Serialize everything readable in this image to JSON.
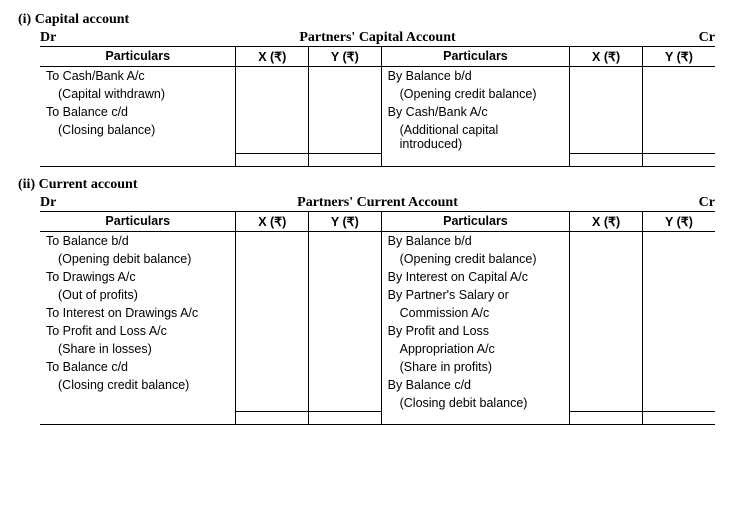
{
  "sections": [
    {
      "num": "(i)",
      "label": "Capital account",
      "dr": "Dr",
      "cr": "Cr",
      "title": "Partners' Capital Account",
      "cols": {
        "part": "Particulars",
        "x": "X (₹)",
        "y": "Y (₹)"
      },
      "left": [
        {
          "t": "To Cash/Bank A/c"
        },
        {
          "t": "(Capital withdrawn)",
          "indent": true
        },
        {
          "t": "To Balance c/d"
        },
        {
          "t": "(Closing balance)",
          "indent": true
        }
      ],
      "right": [
        {
          "t": "By Balance b/d"
        },
        {
          "t": "(Opening credit balance)",
          "indent": true
        },
        {
          "t": "By Cash/Bank A/c"
        },
        {
          "t": "(Additional capital introduced)",
          "indent": true
        }
      ]
    },
    {
      "num": "(ii)",
      "label": "Current account",
      "dr": "Dr",
      "cr": "Cr",
      "title": "Partners' Current Account",
      "cols": {
        "part": "Particulars",
        "x": "X (₹)",
        "y": "Y (₹)"
      },
      "left": [
        {
          "t": "To Balance b/d"
        },
        {
          "t": "(Opening debit balance)",
          "indent": true
        },
        {
          "t": "To Drawings A/c"
        },
        {
          "t": "(Out of profits)",
          "indent": true
        },
        {
          "t": "To Interest on Drawings A/c"
        },
        {
          "t": "To Profit and Loss A/c"
        },
        {
          "t": "(Share in losses)",
          "indent": true
        },
        {
          "t": "To Balance c/d"
        },
        {
          "t": "(Closing credit balance)",
          "indent": true
        },
        {
          "t": ""
        }
      ],
      "right": [
        {
          "t": "By Balance b/d"
        },
        {
          "t": "(Opening credit balance)",
          "indent": true
        },
        {
          "t": "By Interest on Capital A/c"
        },
        {
          "t": "By Partner's Salary or"
        },
        {
          "t": "Commission A/c",
          "indent": true
        },
        {
          "t": "By Profit and Loss"
        },
        {
          "t": "Appropriation A/c",
          "indent": true
        },
        {
          "t": "(Share in profits)",
          "indent": true
        },
        {
          "t": "By Balance c/d"
        },
        {
          "t": "(Closing debit  balance)",
          "indent": true
        }
      ]
    }
  ]
}
